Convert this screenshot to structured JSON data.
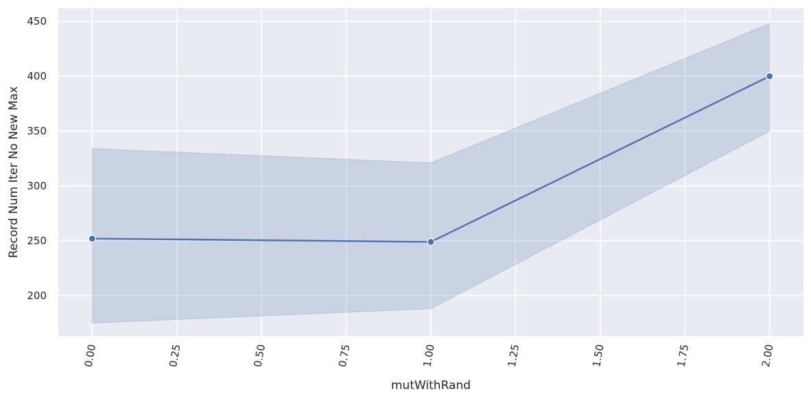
{
  "chart_data": {
    "type": "line",
    "title": "",
    "xlabel": "mutWithRand",
    "ylabel": "Record Num Iter No New Max",
    "xlim": [
      -0.1,
      2.1
    ],
    "ylim": [
      163,
      462
    ],
    "xticks": [
      0.0,
      0.25,
      0.5,
      0.75,
      1.0,
      1.25,
      1.5,
      1.75,
      2.0
    ],
    "xtick_labels": [
      "0.00",
      "0.25",
      "0.50",
      "0.75",
      "1.00",
      "1.25",
      "1.50",
      "1.75",
      "2.00"
    ],
    "yticks": [
      200,
      250,
      300,
      350,
      400,
      450
    ],
    "ytick_labels": [
      "200",
      "250",
      "300",
      "350",
      "400",
      "450"
    ],
    "grid": true,
    "series": [
      {
        "x": [
          0.0,
          1.0,
          2.0
        ],
        "y": [
          252,
          249,
          400
        ],
        "ci_lower": [
          175,
          188,
          350
        ],
        "ci_upper": [
          334,
          321,
          448
        ],
        "color": "#4c72b0",
        "marker": "circle"
      }
    ],
    "colors": {
      "plot_background": "#eaeaf2",
      "grid": "#ffffff",
      "line": "#4c72b0",
      "band": "#4c72b0"
    }
  }
}
